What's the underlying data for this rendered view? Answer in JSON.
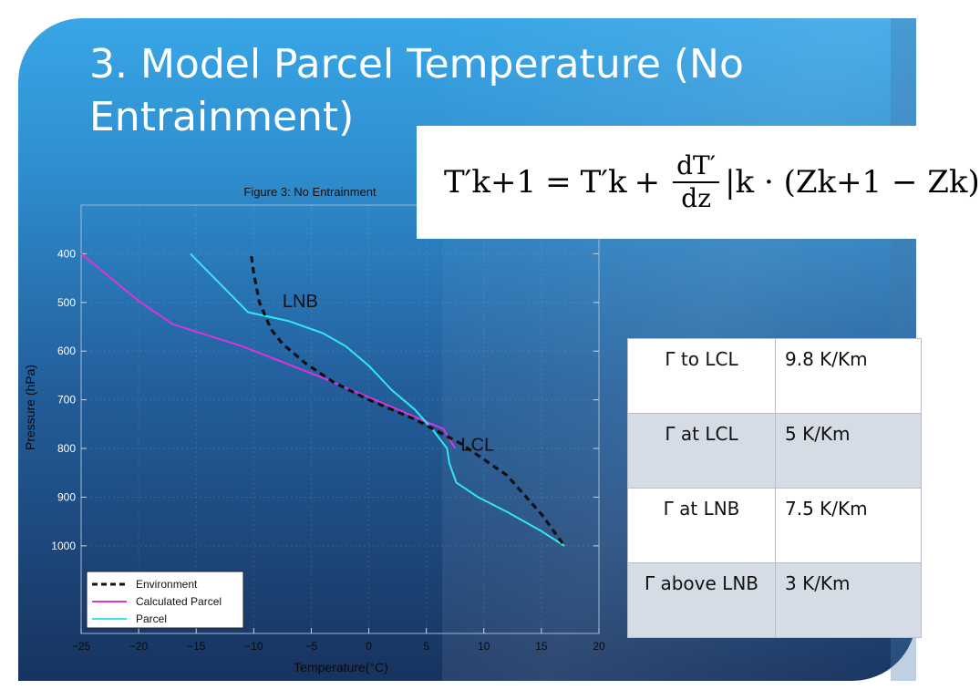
{
  "slide": {
    "title": "3. Model Parcel Temperature (No Entrainment)"
  },
  "equation": {
    "lhs": "T′k+1",
    "eq": "=",
    "t1": "T′k",
    "plus": "+",
    "frac_num": "dT′",
    "frac_den": "dz",
    "tail": "|k · (Zk+1 − Zk)"
  },
  "lapse_table": {
    "rows": [
      {
        "label": "Γ to LCL",
        "value": "9.8 K/Km"
      },
      {
        "label": "Γ at LCL",
        "value": "5 K/Km"
      },
      {
        "label": "Γ at LNB",
        "value": "7.5 K/Km"
      },
      {
        "label": "Γ above LNB",
        "value": "3 K/Km"
      }
    ]
  },
  "chart_data": {
    "type": "line",
    "title": "Figure 3: No Entrainment",
    "xlabel": "Temperature(°C)",
    "ylabel": "Pressure (hPa)",
    "xlim": [
      -25,
      20
    ],
    "ylim": [
      300,
      1180
    ],
    "y_inverted": true,
    "x_ticks": [
      -25,
      -20,
      -15,
      -10,
      -5,
      0,
      5,
      10,
      15,
      20
    ],
    "x_tick_labels": [
      "−25",
      "−20",
      "−15",
      "−10",
      "−5",
      "0",
      "5",
      "10",
      "15",
      "20"
    ],
    "y_ticks": [
      400,
      500,
      600,
      700,
      800,
      900,
      1000
    ],
    "y_tick_labels": [
      "400",
      "500",
      "600",
      "700",
      "800",
      "900",
      "1000"
    ],
    "grid": true,
    "legend_position": "bottom-left",
    "series": [
      {
        "name": "Environment",
        "color": "#111111",
        "style": "dashed",
        "points": [
          [
            -10.2,
            405
          ],
          [
            -10,
            440
          ],
          [
            -9.5,
            500
          ],
          [
            -8.5,
            555
          ],
          [
            -7.5,
            585
          ],
          [
            -5.5,
            625
          ],
          [
            -3,
            665
          ],
          [
            0,
            700
          ],
          [
            4,
            740
          ],
          [
            8,
            790
          ],
          [
            12,
            855
          ],
          [
            15,
            935
          ],
          [
            17,
            1000
          ]
        ]
      },
      {
        "name": "Calculated Parcel",
        "color": "#dd33dd",
        "style": "solid",
        "points": [
          [
            -25,
            400
          ],
          [
            -20,
            497
          ],
          [
            -17,
            545
          ],
          [
            -11,
            590
          ],
          [
            -4,
            655
          ],
          [
            2,
            715
          ],
          [
            6.5,
            760
          ],
          [
            7.5,
            800
          ]
        ]
      },
      {
        "name": "Parcel",
        "color": "#33e6f0",
        "style": "solid",
        "points": [
          [
            -15.5,
            400
          ],
          [
            -13,
            460
          ],
          [
            -10.5,
            520
          ],
          [
            -7,
            538
          ],
          [
            -4,
            563
          ],
          [
            -2,
            590
          ],
          [
            0,
            630
          ],
          [
            2,
            680
          ],
          [
            4,
            720
          ],
          [
            5.5,
            760
          ],
          [
            6.8,
            800
          ],
          [
            7,
            830
          ],
          [
            7.6,
            870
          ],
          [
            9.5,
            900
          ],
          [
            12,
            930
          ],
          [
            15,
            970
          ],
          [
            17,
            1000
          ]
        ]
      }
    ],
    "annotations": [
      {
        "text": "LNB",
        "x": -7.5,
        "y": 510
      },
      {
        "text": "LCL",
        "x": 8,
        "y": 805
      }
    ]
  }
}
